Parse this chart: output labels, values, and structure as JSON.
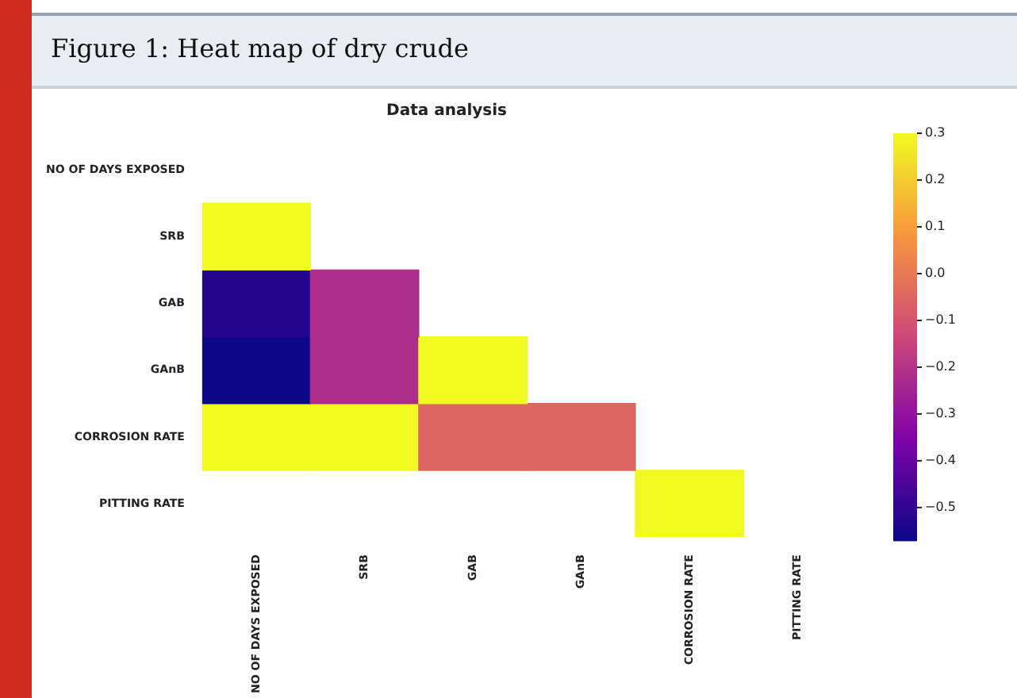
{
  "chart_data": {
    "type": "heatmap",
    "title": "Data analysis",
    "annotations": [
      "Figure 1: Heat map of dry crude"
    ],
    "categories": [
      "NO OF DAYS EXPOSED",
      "SRB",
      "GAB",
      "GAnB",
      "CORROSION RATE",
      "PITTING RATE"
    ],
    "y_categories": [
      "NO OF DAYS EXPOSED",
      "SRB",
      "GAB",
      "GAnB",
      "CORROSION RATE",
      "PITTING RATE"
    ],
    "cells": [
      [
        null,
        null,
        null,
        null,
        null,
        null
      ],
      [
        0.3,
        null,
        null,
        null,
        null,
        null
      ],
      [
        -0.53,
        -0.22,
        null,
        null,
        null,
        null
      ],
      [
        -0.57,
        -0.22,
        0.3,
        null,
        null,
        null
      ],
      [
        0.3,
        0.3,
        -0.05,
        -0.05,
        null,
        null
      ],
      [
        null,
        null,
        null,
        null,
        0.3,
        null
      ]
    ],
    "clim": [
      -0.57,
      0.3
    ],
    "cticks": [
      {
        "value": 0.3,
        "label": "0.3"
      },
      {
        "value": 0.2,
        "label": "0.2"
      },
      {
        "value": 0.1,
        "label": "0.1"
      },
      {
        "value": 0.0,
        "label": "0.0"
      },
      {
        "value": -0.1,
        "label": "−0.1"
      },
      {
        "value": -0.2,
        "label": "−0.2"
      },
      {
        "value": -0.3,
        "label": "−0.3"
      },
      {
        "value": -0.4,
        "label": "−0.4"
      },
      {
        "value": -0.5,
        "label": "−0.5"
      }
    ]
  }
}
